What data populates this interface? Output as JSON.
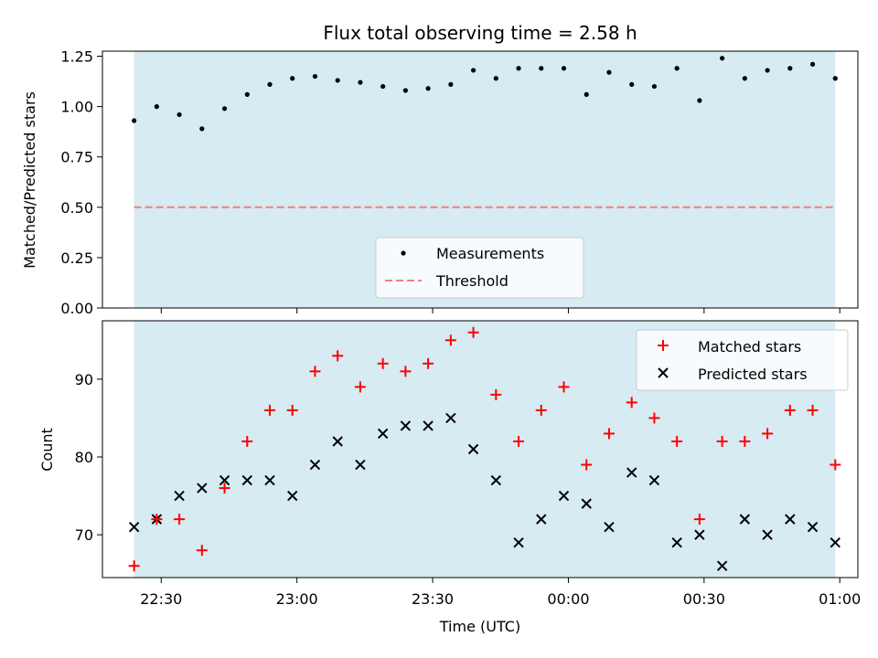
{
  "chart_data": [
    {
      "type": "scatter",
      "title": "Flux total observing time = 2.58 h",
      "ylabel": "Matched/Predicted stars",
      "xlabel": "",
      "ylim": [
        0.0,
        1.275
      ],
      "yticks": [
        "0.00",
        "0.25",
        "0.50",
        "0.75",
        "1.00",
        "1.25"
      ],
      "ytick_values": [
        0.0,
        0.25,
        0.5,
        0.75,
        1.0,
        1.25
      ],
      "observing_window": [
        "22:24",
        "00:59"
      ],
      "shaded_color": "#add8e6",
      "legend_position": "lower center",
      "series": [
        {
          "name": "Measurements",
          "color": "#000000",
          "marker": "dot",
          "x": [
            "22:24",
            "22:29",
            "22:34",
            "22:39",
            "22:44",
            "22:49",
            "22:54",
            "22:59",
            "23:04",
            "23:09",
            "23:14",
            "23:19",
            "23:24",
            "23:29",
            "23:34",
            "23:39",
            "23:44",
            "23:49",
            "23:54",
            "23:59",
            "00:04",
            "00:09",
            "00:14",
            "00:19",
            "00:24",
            "00:29",
            "00:34",
            "00:39",
            "00:44",
            "00:49",
            "00:54",
            "00:59"
          ],
          "values": [
            0.93,
            1.0,
            0.96,
            0.89,
            0.99,
            1.06,
            1.11,
            1.14,
            1.15,
            1.13,
            1.12,
            1.1,
            1.08,
            1.09,
            1.11,
            1.18,
            1.14,
            1.19,
            1.19,
            1.19,
            1.06,
            1.17,
            1.11,
            1.1,
            1.19,
            1.03,
            1.24,
            1.14,
            1.18,
            1.19,
            1.21,
            1.14
          ]
        },
        {
          "name": "Threshold",
          "color": "#f08080",
          "style": "dashed",
          "value": 0.5
        }
      ]
    },
    {
      "type": "scatter",
      "title": "",
      "xlabel": "Time (UTC)",
      "ylabel": "Count",
      "ylim": [
        64.5,
        97.5
      ],
      "yticks": [
        "70",
        "80",
        "90"
      ],
      "ytick_values": [
        70,
        80,
        90
      ],
      "xlim": [
        "22:17",
        "01:04"
      ],
      "xticks": [
        "22:30",
        "23:00",
        "23:30",
        "00:00",
        "00:30",
        "01:00"
      ],
      "observing_window": [
        "22:24",
        "00:59"
      ],
      "shaded_color": "#add8e6",
      "legend_position": "upper right",
      "series": [
        {
          "name": "Matched stars",
          "color": "#ff0000",
          "marker": "plus",
          "x": [
            "22:24",
            "22:29",
            "22:34",
            "22:39",
            "22:44",
            "22:49",
            "22:54",
            "22:59",
            "23:04",
            "23:09",
            "23:14",
            "23:19",
            "23:24",
            "23:29",
            "23:34",
            "23:39",
            "23:44",
            "23:49",
            "23:54",
            "23:59",
            "00:04",
            "00:09",
            "00:14",
            "00:19",
            "00:24",
            "00:29",
            "00:34",
            "00:39",
            "00:44",
            "00:49",
            "00:54",
            "00:59"
          ],
          "values": [
            66,
            72,
            72,
            68,
            76,
            82,
            86,
            86,
            91,
            93,
            89,
            92,
            91,
            92,
            95,
            96,
            88,
            82,
            86,
            89,
            79,
            83,
            87,
            85,
            82,
            72,
            82,
            82,
            83,
            86,
            86,
            79
          ]
        },
        {
          "name": "Predicted stars",
          "color": "#000000",
          "marker": "x",
          "x": [
            "22:24",
            "22:29",
            "22:34",
            "22:39",
            "22:44",
            "22:49",
            "22:54",
            "22:59",
            "23:04",
            "23:09",
            "23:14",
            "23:19",
            "23:24",
            "23:29",
            "23:34",
            "23:39",
            "23:44",
            "23:49",
            "23:54",
            "23:59",
            "00:04",
            "00:09",
            "00:14",
            "00:19",
            "00:24",
            "00:29",
            "00:34",
            "00:39",
            "00:44",
            "00:49",
            "00:54",
            "00:59"
          ],
          "values": [
            71,
            72,
            75,
            76,
            77,
            77,
            77,
            75,
            79,
            82,
            79,
            83,
            84,
            84,
            85,
            81,
            77,
            69,
            72,
            75,
            74,
            71,
            78,
            77,
            69,
            70,
            66,
            72,
            70,
            72,
            71,
            69
          ]
        }
      ]
    }
  ]
}
